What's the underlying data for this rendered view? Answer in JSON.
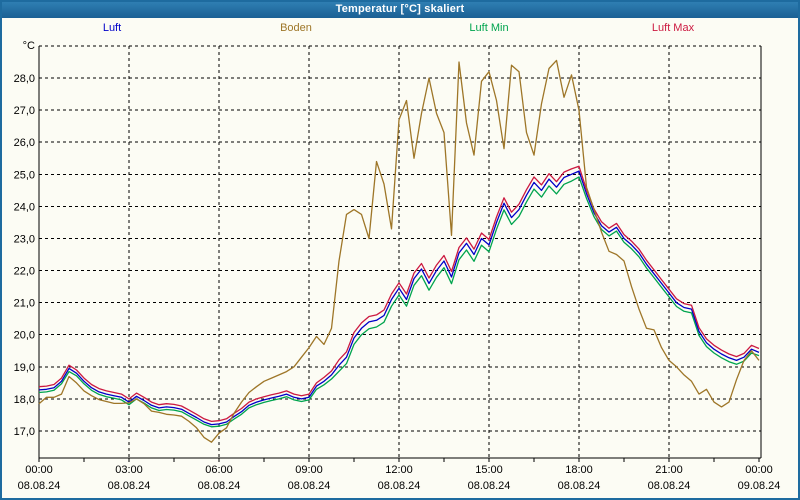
{
  "window": {
    "title": "Temperatur [°C] skaliert"
  },
  "chart_data": {
    "type": "line",
    "title": "Temperatur [°C] skaliert",
    "y_axis_unit": "°C",
    "ylim": [
      16.2,
      29.0
    ],
    "grid": "dashed",
    "legend_position": "top",
    "x_start_hour": 0,
    "x_step_hours": 0.25,
    "x_minor_tick_step_hours": 1.5,
    "x_gridline_hours": [
      3,
      6,
      9,
      12,
      15,
      18,
      21
    ],
    "y_gridlines": [
      17,
      18,
      19,
      20,
      21,
      22,
      23,
      24,
      25,
      26,
      27,
      28,
      29
    ],
    "y_ticks": [
      {
        "value": 28,
        "label": "28,0"
      },
      {
        "value": 27,
        "label": "27,0"
      },
      {
        "value": 26,
        "label": "26,0"
      },
      {
        "value": 25,
        "label": "25,0"
      },
      {
        "value": 24,
        "label": "24,0"
      },
      {
        "value": 23,
        "label": "23,0"
      },
      {
        "value": 22,
        "label": "22,0"
      },
      {
        "value": 21,
        "label": "21,0"
      },
      {
        "value": 20,
        "label": "20,0"
      },
      {
        "value": 19,
        "label": "19,0"
      },
      {
        "value": 18,
        "label": "18,0"
      },
      {
        "value": 17,
        "label": "17,0"
      }
    ],
    "x_ticks": [
      {
        "hour": 0,
        "time": "00:00",
        "date": "08.08.24"
      },
      {
        "hour": 3,
        "time": "03:00",
        "date": "08.08.24"
      },
      {
        "hour": 6,
        "time": "06:00",
        "date": "08.08.24"
      },
      {
        "hour": 9,
        "time": "09:00",
        "date": "08.08.24"
      },
      {
        "hour": 12,
        "time": "12:00",
        "date": "08.08.24"
      },
      {
        "hour": 15,
        "time": "15:00",
        "date": "08.08.24"
      },
      {
        "hour": 18,
        "time": "18:00",
        "date": "08.08.24"
      },
      {
        "hour": 21,
        "time": "21:00",
        "date": "08.08.24"
      },
      {
        "hour": 24,
        "time": "00:00",
        "date": "09.08.24"
      }
    ],
    "series": [
      {
        "name": "Luft",
        "color": "#0000C8",
        "values": [
          18.28,
          18.3,
          18.35,
          18.55,
          18.95,
          18.8,
          18.55,
          18.35,
          18.22,
          18.15,
          18.1,
          18.05,
          17.9,
          18.08,
          17.95,
          17.8,
          17.72,
          17.75,
          17.73,
          17.68,
          17.55,
          17.42,
          17.28,
          17.2,
          17.22,
          17.28,
          17.45,
          17.6,
          17.8,
          17.9,
          17.97,
          18.03,
          18.08,
          18.15,
          18.05,
          18.0,
          18.05,
          18.4,
          18.55,
          18.75,
          19.05,
          19.3,
          19.9,
          20.2,
          20.4,
          20.45,
          20.6,
          21.1,
          21.45,
          21.1,
          21.75,
          22.05,
          21.6,
          22.0,
          22.3,
          21.8,
          22.55,
          22.85,
          22.5,
          23.0,
          22.8,
          23.5,
          24.1,
          23.65,
          23.9,
          24.35,
          24.75,
          24.5,
          24.85,
          24.6,
          24.9,
          25.0,
          25.1,
          24.4,
          23.8,
          23.4,
          23.2,
          23.35,
          23.0,
          22.8,
          22.55,
          22.2,
          21.9,
          21.6,
          21.3,
          21.0,
          20.85,
          20.8,
          20.1,
          19.75,
          19.55,
          19.4,
          19.28,
          19.2,
          19.3,
          19.55,
          19.45
        ]
      },
      {
        "name": "Boden",
        "color": "#9E7628",
        "values": [
          17.85,
          18.05,
          18.05,
          18.15,
          18.7,
          18.5,
          18.25,
          18.1,
          17.98,
          17.92,
          17.86,
          17.86,
          17.88,
          18.0,
          17.85,
          17.62,
          17.58,
          17.52,
          17.5,
          17.46,
          17.3,
          17.1,
          16.8,
          16.65,
          16.93,
          17.1,
          17.55,
          17.9,
          18.2,
          18.38,
          18.55,
          18.65,
          18.75,
          18.85,
          19.0,
          19.3,
          19.6,
          19.95,
          19.7,
          20.2,
          22.3,
          23.75,
          23.9,
          23.75,
          23.0,
          25.4,
          24.7,
          23.3,
          26.7,
          27.3,
          25.5,
          26.9,
          28.0,
          26.9,
          26.3,
          23.1,
          28.5,
          26.6,
          25.6,
          27.9,
          28.2,
          27.3,
          25.8,
          28.4,
          28.2,
          26.3,
          25.6,
          27.2,
          28.3,
          28.55,
          27.4,
          28.1,
          27.0,
          24.6,
          23.9,
          23.2,
          22.6,
          22.5,
          22.3,
          21.5,
          20.8,
          20.2,
          20.15,
          19.6,
          19.2,
          19.0,
          18.75,
          18.55,
          18.15,
          18.3,
          17.9,
          17.75,
          17.9,
          18.6,
          19.2,
          19.5,
          19.2
        ]
      },
      {
        "name": "Luft Min",
        "color": "#00A44E",
        "values": [
          18.2,
          18.22,
          18.27,
          18.47,
          18.85,
          18.72,
          18.47,
          18.27,
          18.14,
          18.07,
          18.02,
          17.97,
          17.82,
          18.0,
          17.87,
          17.72,
          17.64,
          17.67,
          17.65,
          17.6,
          17.47,
          17.34,
          17.21,
          17.13,
          17.15,
          17.21,
          17.37,
          17.52,
          17.72,
          17.82,
          17.89,
          17.95,
          18.0,
          18.07,
          17.97,
          17.92,
          17.97,
          18.3,
          18.44,
          18.62,
          18.86,
          19.1,
          19.7,
          20.0,
          20.19,
          20.24,
          20.39,
          20.89,
          21.24,
          20.89,
          21.54,
          21.84,
          21.39,
          21.79,
          22.09,
          21.59,
          22.34,
          22.64,
          22.29,
          22.79,
          22.59,
          23.29,
          23.89,
          23.44,
          23.69,
          24.14,
          24.54,
          24.29,
          24.64,
          24.39,
          24.69,
          24.79,
          24.92,
          24.25,
          23.68,
          23.28,
          23.08,
          23.23,
          22.88,
          22.68,
          22.43,
          22.08,
          21.78,
          21.48,
          21.18,
          20.88,
          20.73,
          20.68,
          19.98,
          19.63,
          19.43,
          19.28,
          19.16,
          19.08,
          19.18,
          19.43,
          19.35
        ]
      },
      {
        "name": "Luft Max",
        "color": "#CC1940",
        "values": [
          18.38,
          18.4,
          18.45,
          18.65,
          19.05,
          18.9,
          18.65,
          18.45,
          18.32,
          18.25,
          18.2,
          18.15,
          18.0,
          18.18,
          18.05,
          17.9,
          17.82,
          17.85,
          17.83,
          17.78,
          17.65,
          17.52,
          17.38,
          17.3,
          17.32,
          17.38,
          17.55,
          17.7,
          17.9,
          18.0,
          18.07,
          18.13,
          18.18,
          18.25,
          18.15,
          18.1,
          18.15,
          18.5,
          18.67,
          18.87,
          19.22,
          19.47,
          20.07,
          20.37,
          20.57,
          20.62,
          20.77,
          21.27,
          21.62,
          21.27,
          21.92,
          22.22,
          21.77,
          22.17,
          22.47,
          21.97,
          22.72,
          23.02,
          22.67,
          23.17,
          22.97,
          23.67,
          24.27,
          23.82,
          24.07,
          24.52,
          24.92,
          24.67,
          25.02,
          24.77,
          25.07,
          25.17,
          25.25,
          24.52,
          23.92,
          23.52,
          23.32,
          23.47,
          23.12,
          22.92,
          22.67,
          22.32,
          22.02,
          21.72,
          21.42,
          21.12,
          20.97,
          20.92,
          20.22,
          19.87,
          19.67,
          19.52,
          19.4,
          19.32,
          19.42,
          19.67,
          19.57
        ]
      }
    ]
  }
}
